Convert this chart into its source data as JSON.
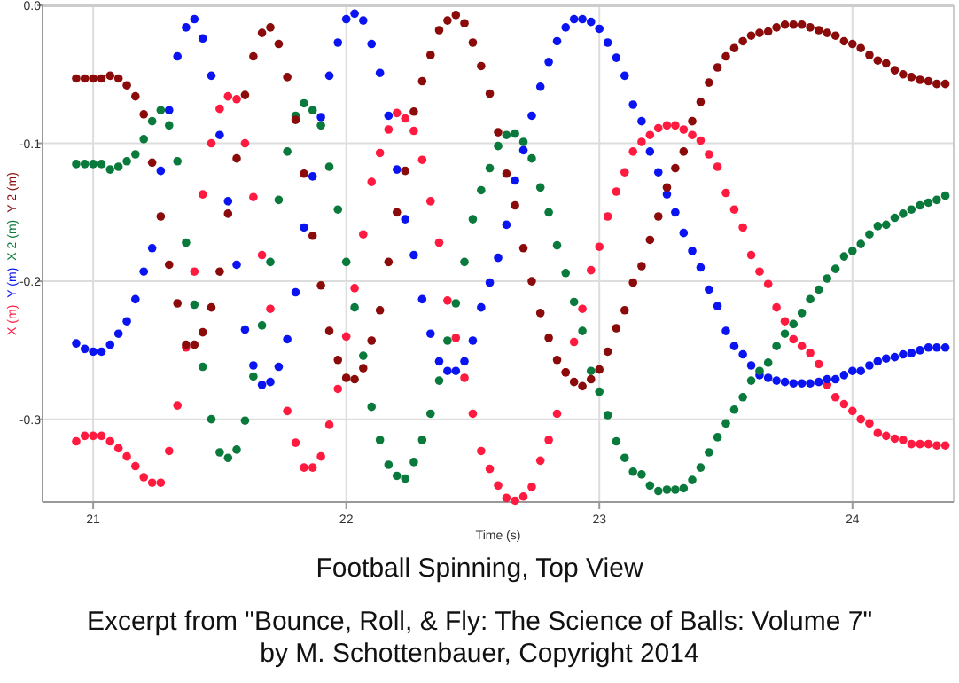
{
  "chart_data": {
    "type": "scatter",
    "title": "Football Spinning, Top View",
    "xlabel": "Time (s)",
    "annotations": [
      "Excerpt from \"Bounce, Roll, & Fly: The Science of Balls: Volume 7\"",
      "by M. Schottenbauer, Copyright 2014"
    ],
    "xlim": [
      20.8,
      24.4
    ],
    "xticks": [
      21,
      22,
      23,
      24
    ],
    "ylim": [
      -0.36,
      0
    ],
    "yticks": [
      {
        "value": 0,
        "label": "0.0"
      },
      -0.1,
      -0.2,
      -0.3
    ],
    "grid": true,
    "marker": "circle",
    "x": [
      20.933,
      20.967,
      21.0,
      21.033,
      21.067,
      21.1,
      21.133,
      21.167,
      21.2,
      21.233,
      21.267,
      21.3,
      21.333,
      21.367,
      21.4,
      21.433,
      21.467,
      21.5,
      21.533,
      21.567,
      21.6,
      21.633,
      21.667,
      21.7,
      21.733,
      21.767,
      21.8,
      21.833,
      21.867,
      21.9,
      21.933,
      21.967,
      22.0,
      22.033,
      22.067,
      22.1,
      22.133,
      22.167,
      22.2,
      22.233,
      22.267,
      22.3,
      22.333,
      22.367,
      22.4,
      22.433,
      22.467,
      22.5,
      22.533,
      22.567,
      22.6,
      22.633,
      22.667,
      22.7,
      22.733,
      22.767,
      22.8,
      22.833,
      22.867,
      22.9,
      22.933,
      22.967,
      23.0,
      23.033,
      23.067,
      23.1,
      23.133,
      23.167,
      23.2,
      23.233,
      23.267,
      23.3,
      23.333,
      23.367,
      23.4,
      23.433,
      23.467,
      23.5,
      23.533,
      23.567,
      23.6,
      23.633,
      23.667,
      23.7,
      23.733,
      23.767,
      23.8,
      23.833,
      23.867,
      23.9,
      23.933,
      23.967,
      24.0,
      24.033,
      24.067,
      24.1,
      24.133,
      24.167,
      24.2,
      24.233,
      24.267,
      24.3,
      24.333,
      24.367
    ],
    "series": [
      {
        "name": "X (m)",
        "color": "#ff1a40",
        "values": [
          -0.316,
          -0.312,
          -0.312,
          -0.312,
          -0.316,
          -0.321,
          -0.327,
          -0.334,
          -0.342,
          -0.346,
          -0.346,
          -0.323,
          -0.29,
          -0.248,
          -0.193,
          -0.137,
          -0.1,
          -0.075,
          -0.066,
          -0.068,
          -0.1,
          -0.139,
          -0.181,
          -0.22,
          null,
          -0.294,
          -0.317,
          -0.335,
          -0.335,
          -0.327,
          -0.304,
          -0.278,
          -0.24,
          -0.205,
          -0.166,
          -0.128,
          -0.107,
          -0.09,
          -0.078,
          -0.082,
          -0.091,
          -0.112,
          -0.142,
          -0.172,
          -0.214,
          -0.241,
          -0.27,
          -0.296,
          -0.323,
          -0.336,
          -0.348,
          -0.357,
          -0.359,
          -0.356,
          -0.349,
          -0.33,
          -0.315,
          -0.296,
          -0.266,
          -0.244,
          -0.22,
          -0.192,
          -0.175,
          -0.153,
          -0.135,
          -0.121,
          -0.106,
          -0.099,
          -0.094,
          -0.089,
          -0.087,
          -0.087,
          -0.09,
          -0.094,
          -0.098,
          -0.108,
          -0.117,
          -0.136,
          -0.148,
          -0.161,
          -0.181,
          -0.193,
          -0.202,
          -0.219,
          -0.229,
          -0.242,
          -0.247,
          -0.252,
          -0.26,
          -0.275,
          -0.284,
          -0.289,
          -0.294,
          -0.3,
          -0.303,
          -0.31,
          -0.312,
          -0.314,
          -0.315,
          -0.318,
          -0.318,
          -0.318,
          -0.319,
          -0.319
        ]
      },
      {
        "name": "Y (m)",
        "color": "#0a14f0",
        "values": [
          -0.245,
          -0.249,
          -0.251,
          -0.251,
          -0.246,
          -0.238,
          -0.229,
          -0.213,
          -0.193,
          -0.176,
          -0.12,
          -0.076,
          -0.037,
          -0.016,
          -0.01,
          -0.024,
          -0.051,
          -0.094,
          -0.142,
          -0.188,
          -0.235,
          -0.261,
          -0.275,
          -0.273,
          -0.262,
          -0.242,
          -0.208,
          -0.161,
          -0.124,
          -0.081,
          -0.051,
          -0.027,
          -0.01,
          -0.006,
          -0.011,
          -0.028,
          -0.049,
          -0.08,
          -0.119,
          -0.155,
          -0.181,
          -0.213,
          -0.238,
          -0.258,
          -0.265,
          -0.265,
          -0.258,
          -0.243,
          -0.219,
          -0.201,
          -0.183,
          -0.159,
          -0.127,
          -0.105,
          -0.08,
          -0.059,
          -0.041,
          -0.026,
          -0.016,
          -0.01,
          -0.01,
          -0.012,
          -0.017,
          -0.027,
          -0.038,
          -0.051,
          -0.072,
          -0.084,
          -0.106,
          -0.121,
          -0.137,
          -0.15,
          -0.165,
          -0.178,
          -0.19,
          -0.206,
          -0.218,
          -0.236,
          -0.247,
          -0.253,
          -0.261,
          -0.268,
          -0.27,
          -0.272,
          -0.273,
          -0.274,
          -0.274,
          -0.274,
          -0.273,
          -0.271,
          -0.271,
          -0.268,
          -0.265,
          -0.265,
          -0.261,
          -0.258,
          -0.256,
          -0.255,
          -0.253,
          -0.252,
          -0.25,
          -0.248,
          -0.248,
          -0.248
        ]
      },
      {
        "name": "X 2 (m)",
        "color": "#0a7a3c",
        "values": [
          -0.115,
          -0.115,
          -0.115,
          -0.115,
          -0.119,
          -0.117,
          -0.113,
          -0.108,
          -0.097,
          -0.084,
          -0.076,
          -0.087,
          -0.113,
          -0.172,
          -0.217,
          -0.262,
          -0.3,
          -0.324,
          -0.328,
          -0.322,
          -0.301,
          -0.269,
          -0.232,
          -0.186,
          -0.141,
          -0.106,
          -0.08,
          -0.071,
          -0.076,
          -0.087,
          -0.117,
          -0.148,
          -0.186,
          -0.219,
          -0.254,
          -0.291,
          -0.315,
          -0.333,
          -0.341,
          -0.343,
          -0.331,
          -0.315,
          -0.296,
          -0.272,
          -0.243,
          -0.216,
          -0.186,
          -0.155,
          -0.134,
          -0.118,
          -0.102,
          -0.094,
          -0.093,
          -0.099,
          -0.111,
          -0.132,
          -0.15,
          -0.174,
          -0.194,
          -0.215,
          -0.236,
          -0.265,
          -0.28,
          -0.297,
          -0.316,
          -0.328,
          -0.338,
          -0.34,
          -0.348,
          -0.352,
          -0.351,
          -0.351,
          -0.35,
          -0.344,
          -0.335,
          -0.324,
          -0.313,
          -0.303,
          -0.293,
          -0.284,
          -0.272,
          -0.265,
          -0.259,
          -0.247,
          -0.238,
          -0.231,
          -0.223,
          -0.213,
          -0.206,
          -0.198,
          -0.191,
          -0.182,
          -0.178,
          -0.173,
          -0.166,
          -0.16,
          -0.159,
          -0.154,
          -0.151,
          -0.148,
          -0.145,
          -0.143,
          -0.141,
          -0.138
        ]
      },
      {
        "name": "Y 2 (m)",
        "color": "#8b0a0a",
        "values": [
          -0.053,
          -0.053,
          -0.053,
          -0.053,
          -0.051,
          -0.053,
          -0.058,
          -0.066,
          -0.079,
          -0.114,
          -0.153,
          -0.188,
          -0.216,
          -0.246,
          -0.246,
          -0.237,
          -0.219,
          -0.193,
          -0.151,
          -0.111,
          -0.065,
          -0.037,
          -0.02,
          -0.016,
          -0.028,
          -0.052,
          -0.083,
          -0.122,
          -0.167,
          -0.203,
          -0.236,
          -0.257,
          -0.27,
          -0.271,
          -0.263,
          -0.243,
          -0.221,
          -0.186,
          -0.15,
          -0.12,
          -0.077,
          -0.055,
          -0.036,
          -0.018,
          -0.011,
          -0.007,
          -0.013,
          -0.027,
          -0.044,
          -0.064,
          -0.092,
          -0.122,
          -0.145,
          -0.176,
          -0.2,
          -0.223,
          -0.241,
          -0.257,
          -0.266,
          -0.273,
          -0.276,
          -0.271,
          -0.264,
          -0.251,
          -0.234,
          -0.221,
          -0.201,
          -0.189,
          -0.17,
          -0.153,
          -0.132,
          -0.118,
          -0.106,
          -0.084,
          -0.07,
          -0.056,
          -0.045,
          -0.037,
          -0.031,
          -0.026,
          -0.022,
          -0.02,
          -0.019,
          -0.016,
          -0.014,
          -0.014,
          -0.014,
          -0.016,
          -0.018,
          -0.02,
          -0.022,
          -0.026,
          -0.028,
          -0.031,
          -0.036,
          -0.04,
          -0.042,
          -0.047,
          -0.05,
          -0.052,
          -0.054,
          -0.055,
          -0.057,
          -0.057
        ]
      }
    ]
  }
}
